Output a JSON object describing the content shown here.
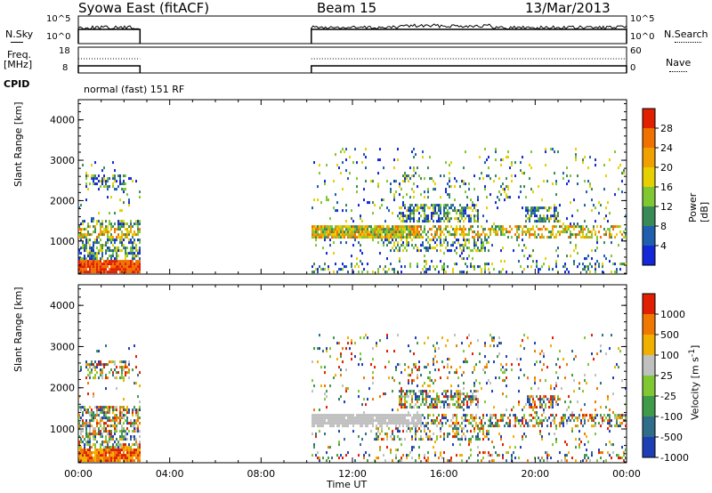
{
  "header": {
    "station": "Syowa East (fitACF)",
    "beam": "Beam 15",
    "date": "13/Mar/2013"
  },
  "params": {
    "nsky_label": "N.Sky",
    "nsky_ticks": [
      "10^5",
      "10^0"
    ],
    "nsearch_label": "N.Search",
    "nsearch_ticks": [
      "10^5",
      "10^0"
    ],
    "freq_label": "Freq.",
    "freq_unit": "[MHz]",
    "freq_ticks": [
      "18",
      "8"
    ],
    "nave_label": "Nave",
    "nave_ticks": [
      "60",
      "0"
    ],
    "cpid_label": "CPID",
    "cpid_value": "normal (fast) 151 RF"
  },
  "chart_data": [
    {
      "type": "heatmap",
      "name": "Power",
      "ylabel": "Slant Range [km]",
      "ylim": [
        180,
        4500
      ],
      "yticks": [
        "1000",
        "2000",
        "3000",
        "4000"
      ],
      "xlim_hours": [
        0,
        24
      ],
      "xticks": [
        "00:00",
        "04:00",
        "08:00",
        "12:00",
        "16:00",
        "20:00",
        "00:00"
      ],
      "colorbar_label": "Power [dB]",
      "colorbar_ticks": [
        "4",
        "8",
        "12",
        "16",
        "20",
        "24",
        "28"
      ],
      "colorbar_colors": [
        "#1428d8",
        "#1f5fae",
        "#3a8a58",
        "#7fc832",
        "#e6d000",
        "#f0a000",
        "#f07000",
        "#e02000"
      ],
      "data_coverage_hours": [
        [
          0,
          2.7
        ],
        [
          10.2,
          24
        ]
      ],
      "main_bands_km": [
        [
          300,
          500
        ],
        [
          700,
          1000
        ],
        [
          1050,
          1350
        ],
        [
          1450,
          1750
        ],
        [
          2100,
          2500
        ]
      ]
    },
    {
      "type": "heatmap",
      "name": "Velocity",
      "ylabel": "Slant Range [km]",
      "ylim": [
        180,
        4500
      ],
      "yticks": [
        "1000",
        "2000",
        "3000",
        "4000"
      ],
      "xlim_hours": [
        0,
        24
      ],
      "xticks": [
        "00:00",
        "04:00",
        "08:00",
        "12:00",
        "16:00",
        "20:00",
        "00:00"
      ],
      "xlabel": "Time UT",
      "colorbar_label": "Velocity [m s",
      "colorbar_label_superscript": "-1",
      "colorbar_label_end": "]",
      "colorbar_ticks": [
        "1000",
        "500",
        "100",
        "25",
        "-25",
        "-100",
        "-500",
        "-1000"
      ],
      "colorbar_colors": [
        "#1e3fb4",
        "#2f6e8a",
        "#3f9a4a",
        "#7fc832",
        "#c0c0c0",
        "#f0b000",
        "#f07800",
        "#e02000"
      ],
      "data_coverage_hours": [
        [
          0,
          2.7
        ],
        [
          10.2,
          24
        ]
      ]
    }
  ]
}
